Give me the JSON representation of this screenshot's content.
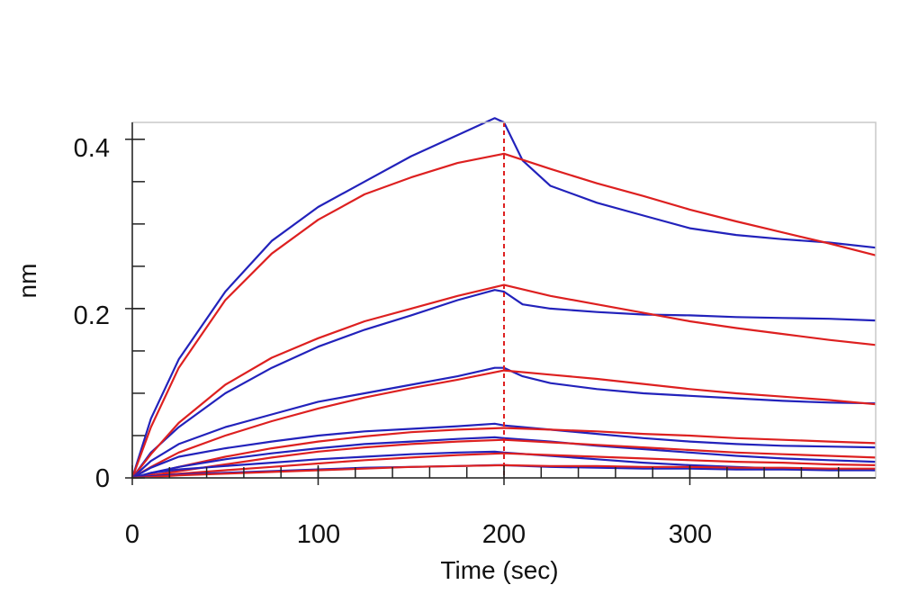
{
  "chart_data": {
    "type": "line",
    "title": "",
    "xlabel": "Time (sec)",
    "ylabel": "nm",
    "xlim": [
      0,
      400
    ],
    "ylim": [
      0,
      0.42
    ],
    "x_ticks": [
      0,
      100,
      200,
      300
    ],
    "y_ticks": [
      0,
      0.2,
      0.4
    ],
    "x_tick_labels": [
      "0",
      "100",
      "200",
      "300"
    ],
    "y_tick_labels": [
      "0",
      "0.2",
      "0.4"
    ],
    "association_end": 200,
    "grid": false,
    "legend": "none",
    "colors": {
      "measured": "#2222bb",
      "fit": "#dd2020",
      "marker": "#dd2020"
    },
    "series": [
      {
        "kind": "measured",
        "points": [
          [
            0,
            0
          ],
          [
            10,
            0.07
          ],
          [
            25,
            0.14
          ],
          [
            50,
            0.22
          ],
          [
            75,
            0.28
          ],
          [
            100,
            0.32
          ],
          [
            125,
            0.35
          ],
          [
            150,
            0.38
          ],
          [
            175,
            0.405
          ],
          [
            195,
            0.425
          ],
          [
            200,
            0.42
          ],
          [
            210,
            0.375
          ],
          [
            225,
            0.345
          ],
          [
            250,
            0.325
          ],
          [
            275,
            0.31
          ],
          [
            300,
            0.295
          ],
          [
            325,
            0.287
          ],
          [
            350,
            0.282
          ],
          [
            375,
            0.278
          ],
          [
            400,
            0.272
          ]
        ]
      },
      {
        "kind": "fit",
        "points": [
          [
            0,
            0
          ],
          [
            10,
            0.06
          ],
          [
            25,
            0.13
          ],
          [
            50,
            0.21
          ],
          [
            75,
            0.265
          ],
          [
            100,
            0.305
          ],
          [
            125,
            0.335
          ],
          [
            150,
            0.355
          ],
          [
            175,
            0.372
          ],
          [
            200,
            0.383
          ],
          [
            225,
            0.365
          ],
          [
            250,
            0.348
          ],
          [
            275,
            0.333
          ],
          [
            300,
            0.317
          ],
          [
            325,
            0.303
          ],
          [
            350,
            0.29
          ],
          [
            375,
            0.277
          ],
          [
            400,
            0.263
          ]
        ]
      },
      {
        "kind": "measured",
        "points": [
          [
            0,
            0
          ],
          [
            10,
            0.03
          ],
          [
            25,
            0.06
          ],
          [
            50,
            0.1
          ],
          [
            75,
            0.13
          ],
          [
            100,
            0.155
          ],
          [
            125,
            0.175
          ],
          [
            150,
            0.192
          ],
          [
            175,
            0.21
          ],
          [
            195,
            0.222
          ],
          [
            200,
            0.22
          ],
          [
            210,
            0.205
          ],
          [
            225,
            0.2
          ],
          [
            250,
            0.196
          ],
          [
            275,
            0.193
          ],
          [
            300,
            0.192
          ],
          [
            325,
            0.19
          ],
          [
            350,
            0.189
          ],
          [
            375,
            0.188
          ],
          [
            400,
            0.186
          ]
        ]
      },
      {
        "kind": "fit",
        "points": [
          [
            0,
            0
          ],
          [
            10,
            0.028
          ],
          [
            25,
            0.065
          ],
          [
            50,
            0.11
          ],
          [
            75,
            0.142
          ],
          [
            100,
            0.165
          ],
          [
            125,
            0.185
          ],
          [
            150,
            0.2
          ],
          [
            175,
            0.215
          ],
          [
            200,
            0.228
          ],
          [
            225,
            0.215
          ],
          [
            250,
            0.205
          ],
          [
            275,
            0.195
          ],
          [
            300,
            0.185
          ],
          [
            325,
            0.177
          ],
          [
            350,
            0.17
          ],
          [
            375,
            0.163
          ],
          [
            400,
            0.157
          ]
        ]
      },
      {
        "kind": "measured",
        "points": [
          [
            0,
            0
          ],
          [
            10,
            0.02
          ],
          [
            25,
            0.04
          ],
          [
            50,
            0.06
          ],
          [
            75,
            0.075
          ],
          [
            100,
            0.09
          ],
          [
            125,
            0.1
          ],
          [
            150,
            0.11
          ],
          [
            175,
            0.12
          ],
          [
            195,
            0.13
          ],
          [
            200,
            0.13
          ],
          [
            210,
            0.12
          ],
          [
            225,
            0.112
          ],
          [
            250,
            0.105
          ],
          [
            275,
            0.1
          ],
          [
            300,
            0.097
          ],
          [
            325,
            0.094
          ],
          [
            350,
            0.091
          ],
          [
            375,
            0.089
          ],
          [
            400,
            0.088
          ]
        ]
      },
      {
        "kind": "fit",
        "points": [
          [
            0,
            0
          ],
          [
            10,
            0.013
          ],
          [
            25,
            0.03
          ],
          [
            50,
            0.05
          ],
          [
            75,
            0.067
          ],
          [
            100,
            0.082
          ],
          [
            125,
            0.095
          ],
          [
            150,
            0.106
          ],
          [
            175,
            0.116
          ],
          [
            200,
            0.127
          ],
          [
            225,
            0.122
          ],
          [
            250,
            0.117
          ],
          [
            275,
            0.111
          ],
          [
            300,
            0.105
          ],
          [
            325,
            0.1
          ],
          [
            350,
            0.096
          ],
          [
            375,
            0.092
          ],
          [
            400,
            0.087
          ]
        ]
      },
      {
        "kind": "measured",
        "points": [
          [
            0,
            0
          ],
          [
            10,
            0.012
          ],
          [
            25,
            0.025
          ],
          [
            50,
            0.035
          ],
          [
            75,
            0.043
          ],
          [
            100,
            0.05
          ],
          [
            125,
            0.055
          ],
          [
            150,
            0.058
          ],
          [
            175,
            0.061
          ],
          [
            195,
            0.064
          ],
          [
            200,
            0.062
          ],
          [
            225,
            0.057
          ],
          [
            250,
            0.052
          ],
          [
            275,
            0.047
          ],
          [
            300,
            0.043
          ],
          [
            325,
            0.04
          ],
          [
            350,
            0.038
          ],
          [
            375,
            0.037
          ],
          [
            400,
            0.036
          ]
        ]
      },
      {
        "kind": "fit",
        "points": [
          [
            0,
            0
          ],
          [
            10,
            0.005
          ],
          [
            25,
            0.013
          ],
          [
            50,
            0.025
          ],
          [
            75,
            0.035
          ],
          [
            100,
            0.043
          ],
          [
            125,
            0.049
          ],
          [
            150,
            0.054
          ],
          [
            175,
            0.057
          ],
          [
            200,
            0.059
          ],
          [
            225,
            0.057
          ],
          [
            250,
            0.055
          ],
          [
            275,
            0.052
          ],
          [
            300,
            0.05
          ],
          [
            325,
            0.047
          ],
          [
            350,
            0.045
          ],
          [
            375,
            0.043
          ],
          [
            400,
            0.041
          ]
        ]
      },
      {
        "kind": "measured",
        "points": [
          [
            0,
            0
          ],
          [
            10,
            0.006
          ],
          [
            25,
            0.013
          ],
          [
            50,
            0.022
          ],
          [
            75,
            0.029
          ],
          [
            100,
            0.035
          ],
          [
            125,
            0.04
          ],
          [
            150,
            0.043
          ],
          [
            175,
            0.046
          ],
          [
            195,
            0.048
          ],
          [
            200,
            0.047
          ],
          [
            225,
            0.043
          ],
          [
            250,
            0.038
          ],
          [
            275,
            0.034
          ],
          [
            300,
            0.03
          ],
          [
            325,
            0.026
          ],
          [
            350,
            0.023
          ],
          [
            375,
            0.021
          ],
          [
            400,
            0.019
          ]
        ]
      },
      {
        "kind": "fit",
        "points": [
          [
            0,
            0
          ],
          [
            10,
            0.003
          ],
          [
            25,
            0.008
          ],
          [
            50,
            0.016
          ],
          [
            75,
            0.024
          ],
          [
            100,
            0.031
          ],
          [
            125,
            0.036
          ],
          [
            150,
            0.04
          ],
          [
            175,
            0.043
          ],
          [
            200,
            0.045
          ],
          [
            225,
            0.042
          ],
          [
            250,
            0.039
          ],
          [
            275,
            0.036
          ],
          [
            300,
            0.033
          ],
          [
            325,
            0.03
          ],
          [
            350,
            0.028
          ],
          [
            375,
            0.026
          ],
          [
            400,
            0.024
          ]
        ]
      },
      {
        "kind": "measured",
        "points": [
          [
            0,
            0
          ],
          [
            10,
            0.006
          ],
          [
            25,
            0.01
          ],
          [
            50,
            0.014
          ],
          [
            75,
            0.018
          ],
          [
            100,
            0.022
          ],
          [
            125,
            0.025
          ],
          [
            150,
            0.028
          ],
          [
            175,
            0.03
          ],
          [
            195,
            0.031
          ],
          [
            200,
            0.03
          ],
          [
            225,
            0.026
          ],
          [
            250,
            0.022
          ],
          [
            275,
            0.018
          ],
          [
            300,
            0.015
          ],
          [
            325,
            0.013
          ],
          [
            350,
            0.011
          ],
          [
            375,
            0.01
          ],
          [
            400,
            0.009
          ]
        ]
      },
      {
        "kind": "fit",
        "points": [
          [
            0,
            0
          ],
          [
            10,
            0.002
          ],
          [
            25,
            0.005
          ],
          [
            50,
            0.009
          ],
          [
            75,
            0.013
          ],
          [
            100,
            0.017
          ],
          [
            125,
            0.021
          ],
          [
            150,
            0.024
          ],
          [
            175,
            0.027
          ],
          [
            200,
            0.029
          ],
          [
            225,
            0.027
          ],
          [
            250,
            0.025
          ],
          [
            275,
            0.023
          ],
          [
            300,
            0.021
          ],
          [
            325,
            0.019
          ],
          [
            350,
            0.018
          ],
          [
            375,
            0.016
          ],
          [
            400,
            0.015
          ]
        ]
      },
      {
        "kind": "measured",
        "points": [
          [
            0,
            0
          ],
          [
            10,
            0.002
          ],
          [
            25,
            0.004
          ],
          [
            50,
            0.006
          ],
          [
            75,
            0.008
          ],
          [
            100,
            0.01
          ],
          [
            125,
            0.012
          ],
          [
            150,
            0.013
          ],
          [
            175,
            0.014
          ],
          [
            195,
            0.015
          ],
          [
            200,
            0.015
          ],
          [
            225,
            0.013
          ],
          [
            250,
            0.012
          ],
          [
            275,
            0.011
          ],
          [
            300,
            0.011
          ],
          [
            325,
            0.01
          ],
          [
            350,
            0.01
          ],
          [
            375,
            0.009
          ],
          [
            400,
            0.009
          ]
        ]
      },
      {
        "kind": "fit",
        "points": [
          [
            0,
            0
          ],
          [
            10,
            0.001
          ],
          [
            25,
            0.003
          ],
          [
            50,
            0.005
          ],
          [
            75,
            0.007
          ],
          [
            100,
            0.009
          ],
          [
            125,
            0.011
          ],
          [
            150,
            0.013
          ],
          [
            175,
            0.014
          ],
          [
            200,
            0.015
          ],
          [
            225,
            0.014
          ],
          [
            250,
            0.014
          ],
          [
            275,
            0.013
          ],
          [
            300,
            0.013
          ],
          [
            325,
            0.012
          ],
          [
            350,
            0.012
          ],
          [
            375,
            0.011
          ],
          [
            400,
            0.011
          ]
        ]
      }
    ]
  }
}
